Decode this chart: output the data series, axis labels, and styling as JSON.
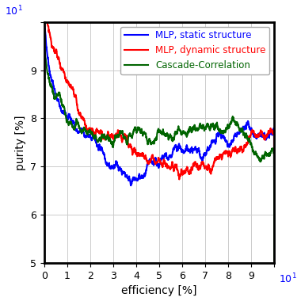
{
  "xlabel": "efficiency [%]",
  "ylabel": "purity [%]",
  "xlim": [
    0,
    10
  ],
  "ylim": [
    5,
    10
  ],
  "xticks": [
    0,
    1,
    2,
    3,
    4,
    5,
    6,
    7,
    8,
    9,
    10
  ],
  "yticks": [
    5,
    6,
    7,
    8,
    9,
    10
  ],
  "grid_color": "#cccccc",
  "background_color": "#ffffff",
  "legend_entries": [
    "MLP, static structure",
    "MLP, dynamic structure",
    "Cascade-Correlation"
  ],
  "legend_colors": [
    "blue",
    "red",
    "darkgreen"
  ],
  "line_width": 1.5,
  "figsize": [
    3.8,
    3.8
  ],
  "dpi": 100,
  "border_color": "#000000"
}
